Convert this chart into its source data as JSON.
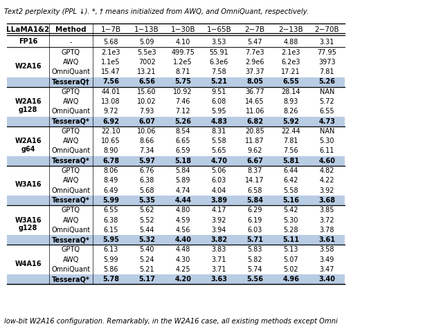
{
  "title": "Text2 perplexity (PPL ↓). *, † means initialized from AWQ, and OmniQuant, respectively.",
  "footer": "low-bit W2A16 configuration. Remarkably, in the W2A16 case, all existing methods except Omni",
  "columns": [
    "LLaMA1&2",
    "Method",
    "1−7B",
    "1−13B",
    "1−30B",
    "1−65B",
    "2−7B",
    "2−13B",
    "2−70B"
  ],
  "highlight_color": "#b8cce4",
  "rows": [
    {
      "group": "FP16",
      "method": "-",
      "vals": [
        "5.68",
        "5.09",
        "4.10",
        "3.53",
        "5.47",
        "4.88",
        "3.31"
      ],
      "bold": false,
      "highlight": false
    },
    {
      "group": "W2A16",
      "method": "GPTQ",
      "vals": [
        "2.1e3",
        "5.5e3",
        "499.75",
        "55.91",
        "7.7e3",
        "2.1e3",
        "77.95"
      ],
      "bold": false,
      "highlight": false
    },
    {
      "group": "",
      "method": "AWQ",
      "vals": [
        "1.1e5",
        "7002",
        "1.2e5",
        "6.3e6",
        "2.9e6",
        "6.2e3",
        "3973"
      ],
      "bold": false,
      "highlight": false
    },
    {
      "group": "",
      "method": "OmniQuant",
      "vals": [
        "15.47",
        "13.21",
        "8.71",
        "7.58",
        "37.37",
        "17.21",
        "7.81"
      ],
      "bold": false,
      "highlight": false
    },
    {
      "group": "",
      "method": "TesseraQ†",
      "vals": [
        "7.56",
        "6.56",
        "5.75",
        "5.21",
        "8.05",
        "6.55",
        "5.26"
      ],
      "bold": true,
      "highlight": true
    },
    {
      "group": "W2A16\ng128",
      "method": "GPTQ",
      "vals": [
        "44.01",
        "15.60",
        "10.92",
        "9.51",
        "36.77",
        "28.14",
        "NAN"
      ],
      "bold": false,
      "highlight": false
    },
    {
      "group": "",
      "method": "AWQ",
      "vals": [
        "13.08",
        "10.02",
        "7.46",
        "6.08",
        "14.65",
        "8.93",
        "5.72"
      ],
      "bold": false,
      "highlight": false
    },
    {
      "group": "",
      "method": "OmniQuant",
      "vals": [
        "9.72",
        "7.93",
        "7.12",
        "5.95",
        "11.06",
        "8.26",
        "6.55"
      ],
      "bold": false,
      "highlight": false
    },
    {
      "group": "",
      "method": "TesseraQ*",
      "vals": [
        "6.92",
        "6.07",
        "5.26",
        "4.83",
        "6.82",
        "5.92",
        "4.73"
      ],
      "bold": true,
      "highlight": true
    },
    {
      "group": "W2A16\ng64",
      "method": "GPTQ",
      "vals": [
        "22.10",
        "10.06",
        "8.54",
        "8.31",
        "20.85",
        "22.44",
        "NAN"
      ],
      "bold": false,
      "highlight": false
    },
    {
      "group": "",
      "method": "AWQ",
      "vals": [
        "10.65",
        "8.66",
        "6.65",
        "5.58",
        "11.87",
        "7.81",
        "5.30"
      ],
      "bold": false,
      "highlight": false
    },
    {
      "group": "",
      "method": "OmniQuant",
      "vals": [
        "8.90",
        "7.34",
        "6.59",
        "5.65",
        "9.62",
        "7.56",
        "6.11"
      ],
      "bold": false,
      "highlight": false
    },
    {
      "group": "",
      "method": "TesseraQ*",
      "vals": [
        "6.78",
        "5.97",
        "5.18",
        "4.70",
        "6.67",
        "5.81",
        "4.60"
      ],
      "bold": true,
      "highlight": true
    },
    {
      "group": "W3A16",
      "method": "GPTQ",
      "vals": [
        "8.06",
        "6.76",
        "5.84",
        "5.06",
        "8.37",
        "6.44",
        "4.82"
      ],
      "bold": false,
      "highlight": false
    },
    {
      "group": "",
      "method": "AWQ",
      "vals": [
        "8.49",
        "6.38",
        "5.89",
        "6.03",
        "14.17",
        "6.42",
        "4.22"
      ],
      "bold": false,
      "highlight": false
    },
    {
      "group": "",
      "method": "OmniQuant",
      "vals": [
        "6.49",
        "5.68",
        "4.74",
        "4.04",
        "6.58",
        "5.58",
        "3.92"
      ],
      "bold": false,
      "highlight": false
    },
    {
      "group": "",
      "method": "TesseraQ*",
      "vals": [
        "5.99",
        "5.35",
        "4.44",
        "3.89",
        "5.84",
        "5.16",
        "3.68"
      ],
      "bold": true,
      "highlight": true
    },
    {
      "group": "W3A16\ng128",
      "method": "GPTQ",
      "vals": [
        "6.55",
        "5.62",
        "4.80",
        "4.17",
        "6.29",
        "5.42",
        "3.85"
      ],
      "bold": false,
      "highlight": false
    },
    {
      "group": "",
      "method": "AWQ",
      "vals": [
        "6.38",
        "5.52",
        "4.59",
        "3.92",
        "6.19",
        "5.30",
        "3.72"
      ],
      "bold": false,
      "highlight": false
    },
    {
      "group": "",
      "method": "OmniQuant",
      "vals": [
        "6.15",
        "5.44",
        "4.56",
        "3.94",
        "6.03",
        "5.28",
        "3.78"
      ],
      "bold": false,
      "highlight": false
    },
    {
      "group": "",
      "method": "TesseraQ*",
      "vals": [
        "5.95",
        "5.32",
        "4.40",
        "3.82",
        "5.71",
        "5.11",
        "3.61"
      ],
      "bold": true,
      "highlight": true
    },
    {
      "group": "W4A16",
      "method": "GPTQ",
      "vals": [
        "6.13",
        "5.40",
        "4.48",
        "3.83",
        "5.83",
        "5.13",
        "3.58"
      ],
      "bold": false,
      "highlight": false
    },
    {
      "group": "",
      "method": "AWQ",
      "vals": [
        "5.99",
        "5.24",
        "4.30",
        "3.71",
        "5.82",
        "5.07",
        "3.49"
      ],
      "bold": false,
      "highlight": false
    },
    {
      "group": "",
      "method": "OmniQuant",
      "vals": [
        "5.86",
        "5.21",
        "4.25",
        "3.71",
        "5.74",
        "5.02",
        "3.47"
      ],
      "bold": false,
      "highlight": false
    },
    {
      "group": "",
      "method": "TesseraQ*",
      "vals": [
        "5.78",
        "5.17",
        "4.20",
        "3.63",
        "5.56",
        "4.96",
        "3.40"
      ],
      "bold": true,
      "highlight": true
    }
  ]
}
